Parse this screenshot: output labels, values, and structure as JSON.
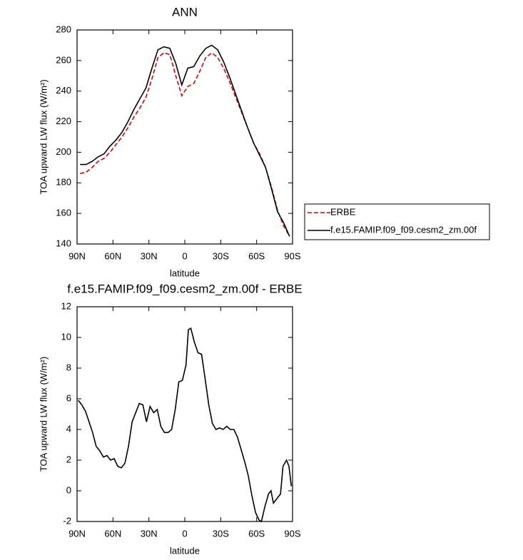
{
  "chart_data": [
    {
      "type": "line",
      "title": "ANN",
      "xlabel": "latitude",
      "ylabel": "TOA upward LW flux (W/m²)",
      "x": [
        87.5,
        82.5,
        77.5,
        72.5,
        67.5,
        62.5,
        57.5,
        52.5,
        47.5,
        42.5,
        37.5,
        32.5,
        27.5,
        22.5,
        17.5,
        12.5,
        7.5,
        2.5,
        -2.5,
        -7.5,
        -12.5,
        -17.5,
        -22.5,
        -27.5,
        -32.5,
        -37.5,
        -42.5,
        -47.5,
        -52.5,
        -57.5,
        -62.5,
        -67.5,
        -72.5,
        -77.5,
        -82.5,
        -87.5
      ],
      "series": [
        {
          "name": "ERBE",
          "color": "#e00000",
          "dash": true,
          "values": [
            186,
            187,
            190,
            194,
            196,
            200,
            205,
            210,
            216,
            223,
            229,
            236,
            248,
            262,
            265,
            264,
            250,
            237,
            243,
            245,
            253,
            262,
            265,
            262,
            255,
            246,
            236,
            226,
            216,
            206,
            199,
            190,
            177,
            162,
            152,
            145
          ]
        },
        {
          "name": "f.e15.FAMIP.f09_f09.cesm2_zm.00f",
          "color": "#000000",
          "dash": false,
          "values": [
            192,
            192,
            194,
            197,
            199,
            204,
            208,
            213,
            220,
            228,
            235,
            242,
            255,
            267,
            269,
            268,
            258,
            244,
            255,
            256,
            263,
            268,
            270,
            267,
            259,
            249,
            238,
            227,
            216,
            206,
            198,
            190,
            176,
            161,
            154,
            145
          ]
        }
      ],
      "xlim": [
        90,
        -90
      ],
      "xticks": [
        {
          "value": 90,
          "label": "90N"
        },
        {
          "value": 60,
          "label": "60N"
        },
        {
          "value": 30,
          "label": "30N"
        },
        0,
        {
          "value": -30,
          "label": "30S"
        },
        {
          "value": -60,
          "label": "60S"
        },
        {
          "value": -90,
          "label": "90S"
        }
      ],
      "ylim": [
        140,
        280
      ],
      "yticks": [
        140,
        160,
        180,
        200,
        220,
        240,
        260,
        280
      ],
      "legend": "right"
    },
    {
      "type": "line",
      "title": "f.e15.FAMIP.f09_f09.cesm2_zm.00f - ERBE",
      "xlabel": "latitude",
      "ylabel": "TOA upward LW flux (W/m²)",
      "x": [
        89,
        86,
        83,
        80,
        77,
        74,
        71,
        68,
        65,
        62,
        59,
        56,
        53,
        50,
        47,
        44,
        41,
        38,
        35,
        32,
        29,
        26,
        23,
        20,
        17,
        14,
        11,
        8,
        5,
        2,
        -1,
        -3,
        -5,
        -8,
        -11,
        -14,
        -17,
        -20,
        -23,
        -26,
        -29,
        -32,
        -35,
        -38,
        -41,
        -44,
        -47,
        -50,
        -53,
        -56,
        -59,
        -62,
        -64,
        -67,
        -70,
        -72,
        -74,
        -77,
        -80,
        -82,
        -85,
        -87,
        -89
      ],
      "series": [
        {
          "name": "f.e15.FAMIP.f09_f09.cesm2_zm.00f - ERBE",
          "color": "#000000",
          "dash": false,
          "values": [
            5.9,
            5.6,
            5.2,
            4.5,
            3.8,
            2.9,
            2.6,
            2.2,
            2.3,
            2.0,
            2.1,
            1.6,
            1.5,
            1.8,
            2.9,
            4.5,
            5.1,
            5.7,
            5.6,
            4.5,
            5.5,
            5.1,
            5.3,
            4.2,
            3.8,
            3.8,
            4.0,
            5.3,
            7.1,
            7.2,
            8.2,
            10.5,
            10.6,
            9.7,
            9.0,
            8.9,
            7.3,
            5.6,
            4.4,
            4.0,
            4.1,
            4.0,
            4.2,
            4.0,
            4.0,
            3.5,
            2.7,
            1.9,
            1.0,
            -0.3,
            -1.4,
            -1.9,
            -2.0,
            -1.0,
            -0.2,
            0.0,
            -0.8,
            -0.5,
            -0.2,
            1.6,
            2.0,
            1.6,
            0.3
          ]
        }
      ],
      "xlim": [
        90,
        -90
      ],
      "xticks": [
        {
          "value": 90,
          "label": "90N"
        },
        {
          "value": 60,
          "label": "60N"
        },
        {
          "value": 30,
          "label": "30N"
        },
        0,
        {
          "value": -30,
          "label": "30S"
        },
        {
          "value": -60,
          "label": "60S"
        },
        {
          "value": -90,
          "label": "90S"
        }
      ],
      "ylim": [
        -2,
        12
      ],
      "yticks": [
        -2,
        0,
        2,
        4,
        6,
        8,
        10,
        12
      ]
    }
  ]
}
